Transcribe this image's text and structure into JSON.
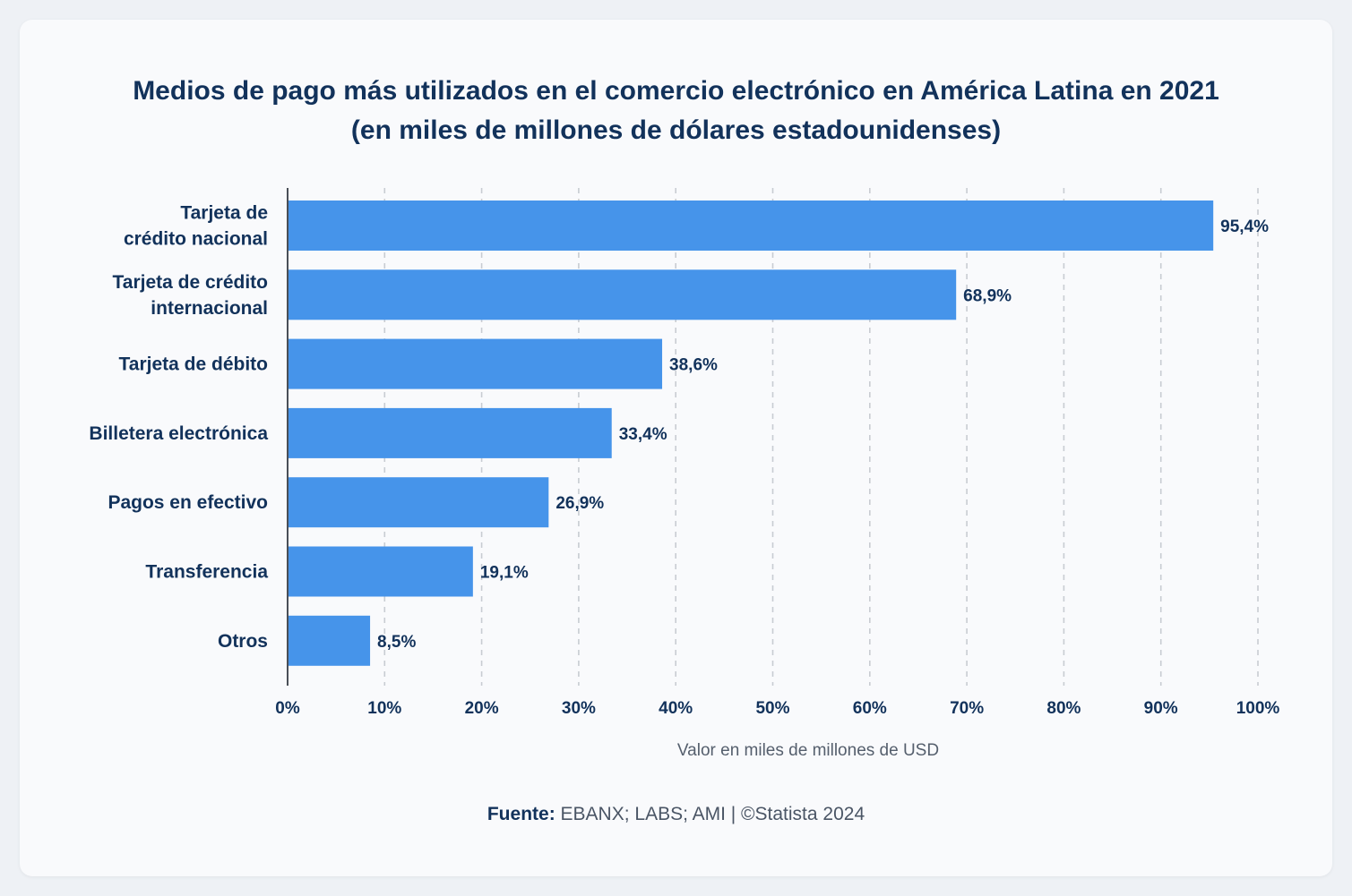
{
  "chart_data": {
    "type": "bar",
    "orientation": "horizontal",
    "title": [
      "Medios de pago más utilizados en el comercio electrónico en América Latina en 2021",
      "(en miles de millones de dólares estadounidenses)"
    ],
    "categories": [
      [
        "Tarjeta de",
        "crédito nacional"
      ],
      [
        "Tarjeta de crédito",
        "internacional"
      ],
      [
        "Tarjeta de débito"
      ],
      [
        "Billetera electrónica"
      ],
      [
        "Pagos en efectivo"
      ],
      [
        "Transferencia"
      ],
      [
        "Otros"
      ]
    ],
    "values": [
      95.4,
      68.9,
      38.6,
      33.4,
      26.9,
      19.1,
      8.5
    ],
    "value_labels": [
      "95,4%",
      "68,9%",
      "38,6%",
      "33,4%",
      "26,9%",
      "19,1%",
      "8,5%"
    ],
    "x_ticks": [
      0,
      10,
      20,
      30,
      40,
      50,
      60,
      70,
      80,
      90,
      100
    ],
    "x_tick_labels": [
      "0%",
      "10%",
      "20%",
      "30%",
      "40%",
      "50%",
      "60%",
      "70%",
      "80%",
      "90%",
      "100%"
    ],
    "xlim": [
      0,
      100
    ],
    "xlabel": "Valor en miles de millones de USD",
    "ylabel": "",
    "grid": "vertical dashed",
    "bar_color": "#4694ea"
  },
  "source": {
    "label": "Fuente:",
    "text": "EBANX; LABS; AMI | ©Statista 2024"
  }
}
